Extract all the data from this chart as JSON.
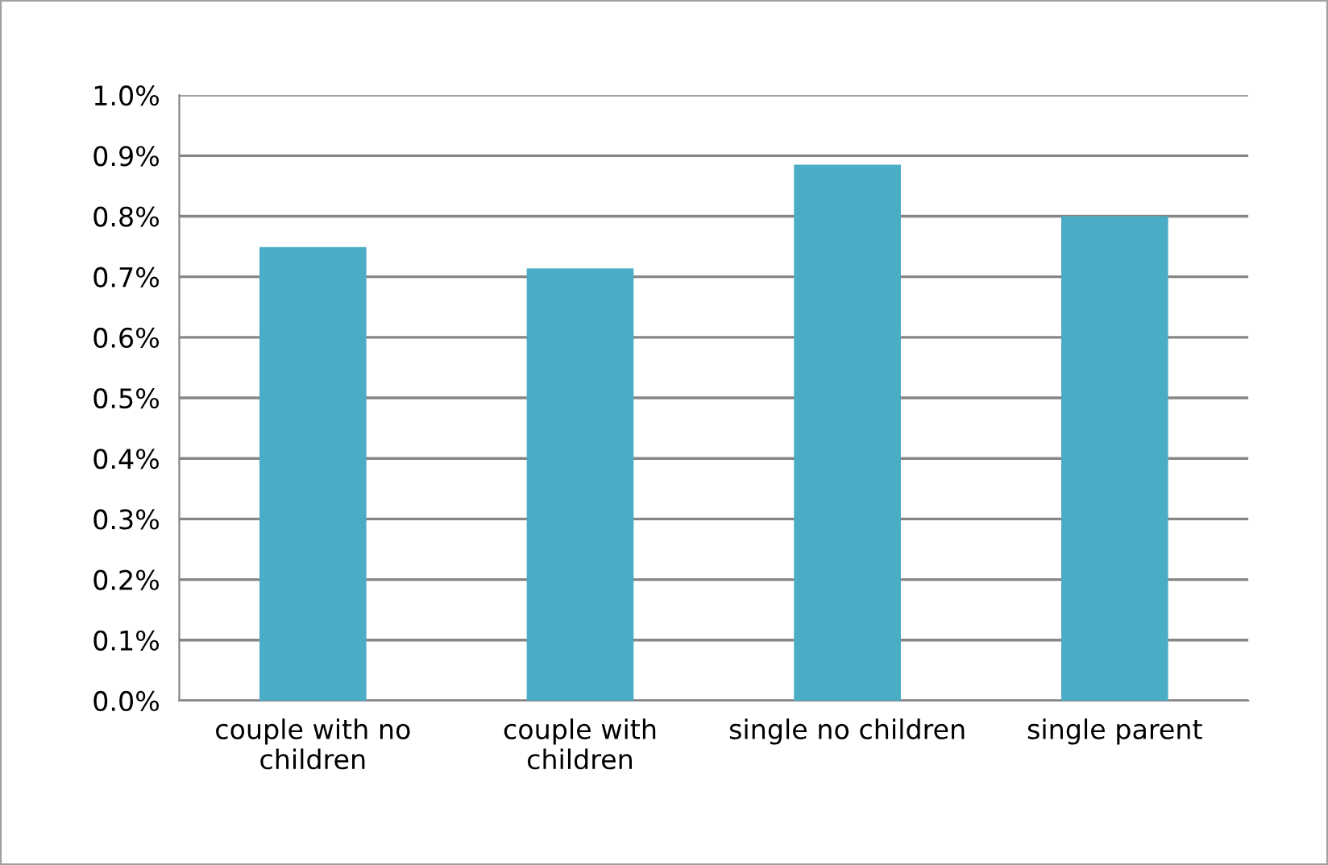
{
  "chart_data": {
    "type": "bar",
    "categories": [
      "couple with no children",
      "couple with children",
      "single no children",
      "single parent"
    ],
    "values": [
      0.749,
      0.714,
      0.885,
      0.8
    ],
    "color": "#4bacc6",
    "ylim": [
      0,
      1.0
    ],
    "yticks": [
      {
        "value": 0,
        "label": "0.0%"
      },
      {
        "value": 0.1,
        "label": "0.1%"
      },
      {
        "value": 0.2,
        "label": "0.2%"
      },
      {
        "value": 0.3,
        "label": "0.3%"
      },
      {
        "value": 0.4,
        "label": "0.4%"
      },
      {
        "value": 0.5,
        "label": "0.5%"
      },
      {
        "value": 0.6,
        "label": "0.6%"
      },
      {
        "value": 0.7,
        "label": "0.7%"
      },
      {
        "value": 0.8,
        "label": "0.8%"
      },
      {
        "value": 0.9,
        "label": "0.9%"
      },
      {
        "value": 1.0,
        "label": "1.0%"
      }
    ],
    "grid": "y"
  }
}
